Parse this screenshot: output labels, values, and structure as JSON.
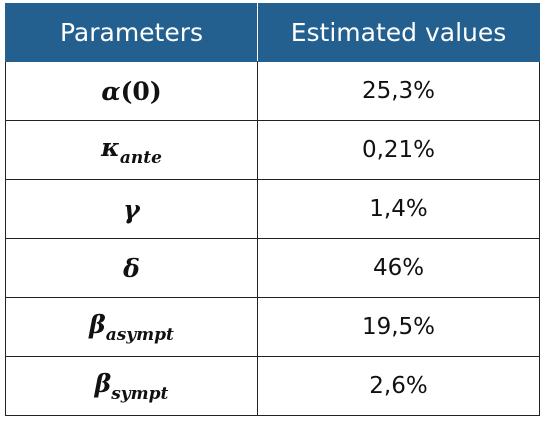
{
  "table": {
    "header": [
      "Parameters",
      "Estimated values"
    ],
    "rows": [
      [
        {
          "symbol": "α",
          "suffix": "(0)"
        },
        "25,3%"
      ],
      [
        {
          "symbol": "κ",
          "subscript": "ante"
        },
        "0,21%"
      ],
      [
        {
          "symbol": "γ"
        },
        "1,4%"
      ],
      [
        {
          "symbol": "δ"
        },
        "46%"
      ],
      [
        {
          "symbol": "β",
          "subscript": "asympt"
        },
        "19,5%"
      ],
      [
        {
          "symbol": "β",
          "subscript": "sympt"
        },
        "2,6%"
      ]
    ]
  }
}
